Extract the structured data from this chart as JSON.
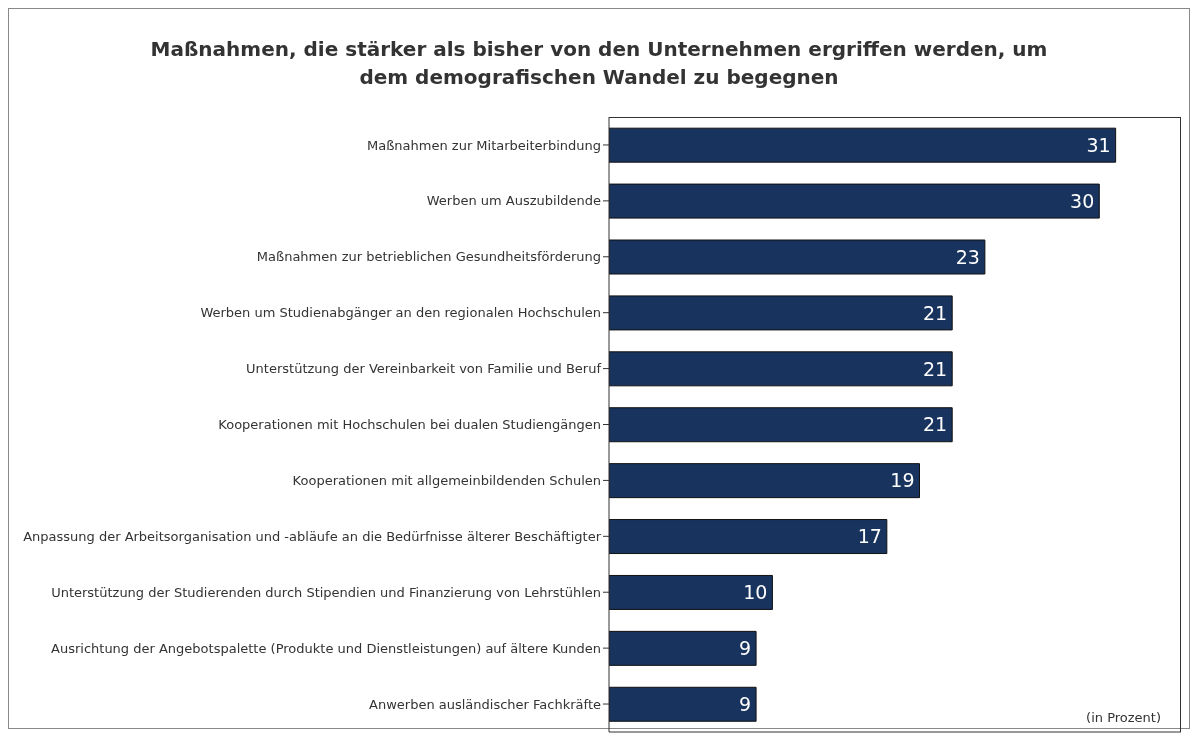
{
  "chart_data": {
    "type": "bar",
    "orientation": "horizontal",
    "title": "Maßnahmen, die stärker als bisher von den Unternehmen ergriffen werden, um dem demografischen Wandel zu begegnen",
    "categories": [
      "Maßnahmen zur Mitarbeiterbindung",
      "Werben um Auszubildende",
      "Maßnahmen zur betrieblichen Gesundheitsförderung",
      "Werben um Studienabgänger an den regionalen Hochschulen",
      "Unterstützung der Vereinbarkeit von Familie und Beruf",
      "Kooperationen mit Hochschulen bei dualen Studiengängen",
      "Kooperationen mit allgemeinbildenden Schulen",
      "Anpassung der Arbeitsorganisation und -abläufe an die Bedürfnisse älterer Beschäftigter",
      "Unterstützung der Studierenden durch Stipendien und Finanzierung von Lehrstühlen",
      "Ausrichtung der Angebotspalette (Produkte und Dienstleistungen) auf ältere Kunden",
      "Anwerben ausländischer Fachkräfte"
    ],
    "values": [
      31,
      30,
      23,
      21,
      21,
      21,
      19,
      17,
      10,
      9,
      9
    ],
    "color": "#17335e",
    "data_labels": true,
    "xlim": [
      0,
      35
    ],
    "annotations": [
      "(in Prozent)"
    ]
  }
}
